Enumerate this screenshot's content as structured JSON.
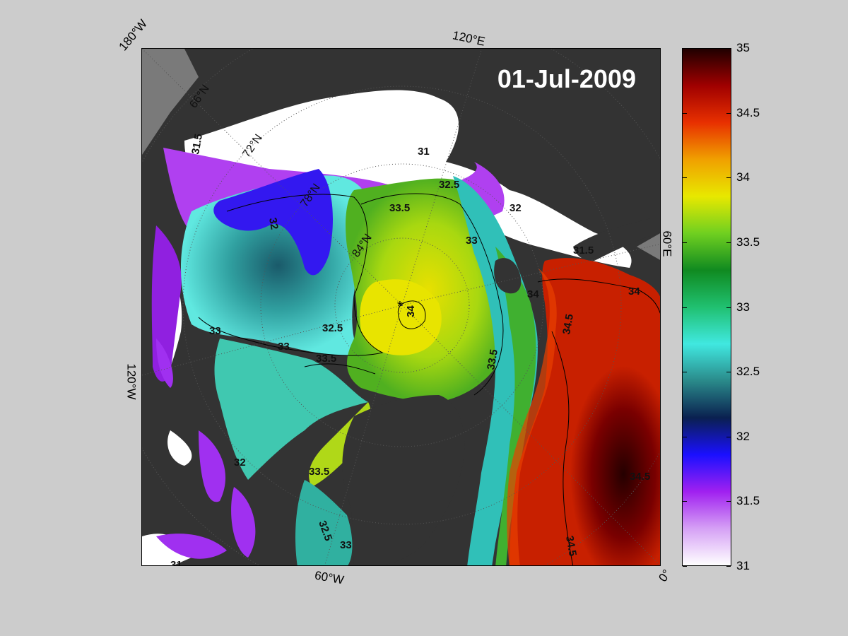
{
  "title": {
    "date": "01-Jul-2009"
  },
  "edge_labels": {
    "top_left": "180°W",
    "top": "120°E",
    "right": "60°E",
    "left": "120°W",
    "bottom": "60°W",
    "bottom_right": "0°"
  },
  "latitude_labels": [
    "66°N",
    "72°N",
    "78°N",
    "84°N"
  ],
  "contour_labels": [
    "31",
    "31",
    "31.5",
    "31.5",
    "32",
    "32",
    "32",
    "32.5",
    "32.5",
    "32.5",
    "33",
    "33",
    "33",
    "33",
    "33.5",
    "33.5",
    "33.5",
    "33.5",
    "34",
    "34",
    "34",
    "34.5",
    "34.5",
    "34.5"
  ],
  "colorbar": {
    "min": 31,
    "max": 35,
    "ticks": [
      "35",
      "34.5",
      "34",
      "33.5",
      "33",
      "32.5",
      "32",
      "31.5",
      "31"
    ],
    "colors": [
      "#ffffff",
      "#d5a0f5",
      "#a020f0",
      "#1a10ff",
      "#0a2050",
      "#2a8a8a",
      "#40e8e0",
      "#20c070",
      "#108a20",
      "#70d020",
      "#e8e800",
      "#f0a000",
      "#e83000",
      "#a00000",
      "#200000"
    ]
  },
  "colors": {
    "land": "#333333",
    "ice": "#ffffff",
    "background": "#cccccc"
  }
}
